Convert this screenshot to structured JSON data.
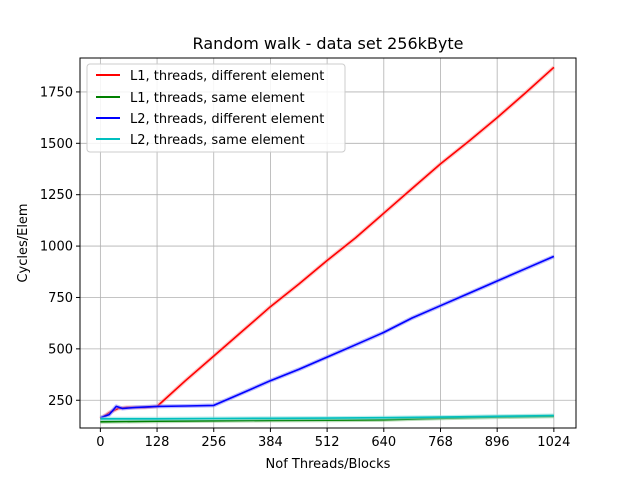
{
  "chart_data": {
    "type": "line",
    "title": "Random walk - data set 256kByte",
    "xlabel": "Nof Threads/Blocks",
    "ylabel": "Cycles/Elem",
    "xlim": [
      -46,
      1074
    ],
    "ylim": [
      115,
      1915
    ],
    "xticks": [
      0,
      128,
      256,
      384,
      512,
      640,
      768,
      896,
      1024
    ],
    "yticks": [
      250,
      500,
      750,
      1000,
      1250,
      1500,
      1750
    ],
    "grid": true,
    "legend_position": "upper-left",
    "series": [
      {
        "name": "L1, threads, different element",
        "color": "#ff0000",
        "band_color": "#ff9999",
        "x": [
          0,
          20,
          40,
          60,
          80,
          100,
          128,
          192,
          256,
          320,
          384,
          448,
          512,
          576,
          640,
          704,
          768,
          832,
          896,
          960,
          1024
        ],
        "y": [
          160,
          190,
          210,
          215,
          215,
          215,
          220,
          345,
          465,
          585,
          705,
          815,
          930,
          1040,
          1160,
          1280,
          1400,
          1510,
          1625,
          1745,
          1870
        ]
      },
      {
        "name": "L1, threads, same element",
        "color": "#008000",
        "band_color": "#7fbf7f",
        "x": [
          0,
          128,
          256,
          384,
          512,
          640,
          768,
          896,
          1024
        ],
        "y": [
          145,
          148,
          150,
          152,
          153,
          155,
          162,
          168,
          172
        ]
      },
      {
        "name": "L2, threads, different element",
        "color": "#0000ff",
        "band_color": "#8080ff",
        "x": [
          0,
          20,
          36,
          50,
          80,
          128,
          192,
          256,
          320,
          384,
          448,
          512,
          576,
          640,
          704,
          768,
          832,
          896,
          960,
          1024
        ],
        "y": [
          165,
          180,
          220,
          210,
          215,
          220,
          222,
          225,
          285,
          345,
          400,
          460,
          520,
          580,
          650,
          710,
          770,
          830,
          890,
          950
        ]
      },
      {
        "name": "L2, threads, same element",
        "color": "#00bfbf",
        "band_color": "#80dfdf",
        "x": [
          0,
          128,
          256,
          384,
          512,
          640,
          768,
          896,
          1024
        ],
        "y": [
          160,
          160,
          161,
          162,
          163,
          165,
          168,
          172,
          176
        ]
      }
    ]
  }
}
